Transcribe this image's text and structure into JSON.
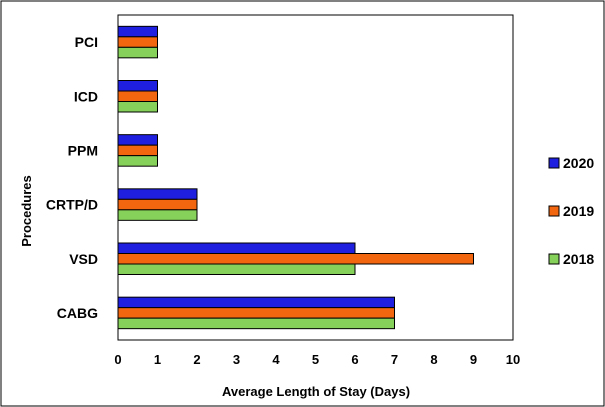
{
  "chart_data": {
    "type": "bar",
    "orientation": "horizontal",
    "categories": [
      "CABG",
      "VSD",
      "CRTP/D",
      "PPM",
      "ICD",
      "PCI"
    ],
    "series": [
      {
        "name": "2020",
        "color": "#1f1fe0",
        "values": [
          7,
          6,
          2,
          1,
          1,
          1
        ]
      },
      {
        "name": "2019",
        "color": "#f2660f",
        "values": [
          7,
          9,
          2,
          1,
          1,
          1
        ]
      },
      {
        "name": "2018",
        "color": "#86d15a",
        "values": [
          7,
          6,
          2,
          1,
          1,
          1
        ]
      }
    ],
    "xlabel": "Average Length of Stay (Days)",
    "ylabel": "Procedures",
    "xlim": [
      0,
      10
    ],
    "xticks": [
      0,
      1,
      2,
      3,
      4,
      5,
      6,
      7,
      8,
      9,
      10
    ],
    "grid": false,
    "legend": {
      "placement": "right"
    },
    "bar_border_color": "#000000",
    "frame_color": "#000000"
  }
}
